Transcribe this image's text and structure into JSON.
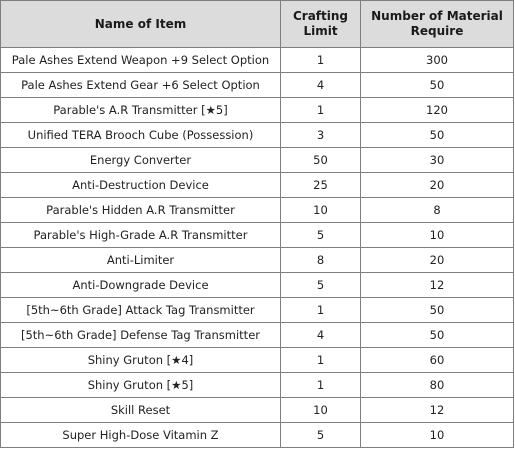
{
  "table": {
    "headers": {
      "name": "Name of Item",
      "limit": "Crafting Limit",
      "material": "Number of Material Require"
    },
    "rows": [
      {
        "name": "Pale Ashes Extend Weapon +9 Select Option",
        "limit": "1",
        "material": "300"
      },
      {
        "name": "Pale Ashes Extend Gear +6 Select Option",
        "limit": "4",
        "material": "50"
      },
      {
        "name": "Parable's A.R Transmitter [★5]",
        "limit": "1",
        "material": "120"
      },
      {
        "name": "Unified TERA Brooch Cube (Possession)",
        "limit": "3",
        "material": "50"
      },
      {
        "name": "Energy Converter",
        "limit": "50",
        "material": "30"
      },
      {
        "name": "Anti-Destruction Device",
        "limit": "25",
        "material": "20"
      },
      {
        "name": "Parable's Hidden A.R Transmitter",
        "limit": "10",
        "material": "8"
      },
      {
        "name": "Parable's High-Grade A.R Transmitter",
        "limit": "5",
        "material": "10"
      },
      {
        "name": "Anti-Limiter",
        "limit": "8",
        "material": "20"
      },
      {
        "name": "Anti-Downgrade Device",
        "limit": "5",
        "material": "12"
      },
      {
        "name": "[5th~6th Grade] Attack Tag Transmitter",
        "limit": "1",
        "material": "50"
      },
      {
        "name": "[5th~6th Grade] Defense Tag Transmitter",
        "limit": "4",
        "material": "50"
      },
      {
        "name": "Shiny Gruton [★4]",
        "limit": "1",
        "material": "60"
      },
      {
        "name": "Shiny Gruton [★5]",
        "limit": "1",
        "material": "80"
      },
      {
        "name": "Skill Reset",
        "limit": "10",
        "material": "12"
      },
      {
        "name": "Super High-Dose Vitamin Z",
        "limit": "5",
        "material": "10"
      }
    ]
  }
}
